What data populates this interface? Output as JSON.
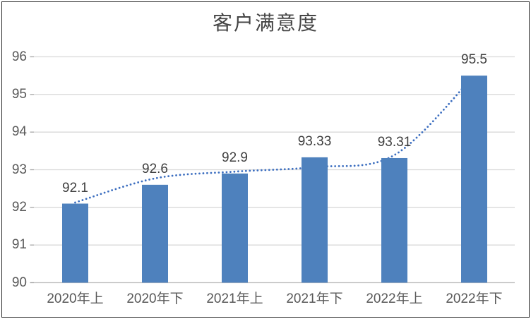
{
  "window": {
    "title": "客户满意度"
  },
  "colors": {
    "bar": "#4E81BD",
    "trendline": "#3D6FC0",
    "gridline": "#D9D9D9",
    "axis_line": "#BFBFBF",
    "tick": "#A6A6A6",
    "axis_text": "#595959",
    "data_label_text": "#3F3F3F",
    "title_text": "#454545",
    "frame_border": "#2E2E2E"
  },
  "chart_data": {
    "type": "bar",
    "title": "客户满意度",
    "categories": [
      "2020年上",
      "2020年下",
      "2021年上",
      "2021年下",
      "2022年上",
      "2022年下"
    ],
    "values": [
      92.1,
      92.6,
      92.9,
      93.33,
      93.31,
      95.5
    ],
    "data_labels": [
      "92.1",
      "92.6",
      "92.9",
      "93.33",
      "93.31",
      "95.5"
    ],
    "xlabel": "",
    "ylabel": "",
    "ylim": [
      90,
      96
    ],
    "yticks": [
      90,
      91,
      92,
      93,
      94,
      95,
      96
    ],
    "grid": true,
    "legend": "none",
    "trendline": {
      "style": "dotted-smooth",
      "y": [
        92.13,
        92.77,
        92.95,
        93.07,
        93.39,
        95.5
      ]
    }
  }
}
